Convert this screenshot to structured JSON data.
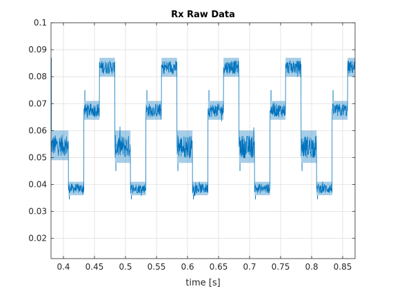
{
  "chart_data": {
    "type": "line",
    "title": "Rx Raw Data",
    "xlabel": "time [s]",
    "ylabel": "",
    "xlim": [
      0.38,
      0.87
    ],
    "ylim": [
      0.0125,
      0.1
    ],
    "xticks": [
      0.4,
      0.45,
      0.5,
      0.55,
      0.6,
      0.65,
      0.7,
      0.75,
      0.8,
      0.85
    ],
    "xtick_labels": [
      "0.4",
      "0.45",
      "0.5",
      "0.55",
      "0.6",
      "0.65",
      "0.7",
      "0.75",
      "0.8",
      "0.85"
    ],
    "yticks": [
      0.02,
      0.03,
      0.04,
      0.05,
      0.06,
      0.07,
      0.08,
      0.09,
      0.1
    ],
    "ytick_labels": [
      "0.02",
      "0.03",
      "0.04",
      "0.05",
      "0.06",
      "0.07",
      "0.08",
      "0.09",
      "0.1"
    ],
    "grid": true,
    "legend": "none",
    "series": [
      {
        "color": "#0072BD",
        "period": 0.1,
        "segments": [
          {
            "x_start": 0.38,
            "x_end": 0.408,
            "low": 0.049,
            "high": 0.06
          },
          {
            "x_start": 0.408,
            "x_end": 0.433,
            "low": 0.036,
            "high": 0.041
          },
          {
            "x_start": 0.433,
            "x_end": 0.458,
            "low": 0.064,
            "high": 0.071
          },
          {
            "x_start": 0.458,
            "x_end": 0.483,
            "low": 0.08,
            "high": 0.087
          },
          {
            "x_start": 0.483,
            "x_end": 0.508,
            "low": 0.048,
            "high": 0.06
          },
          {
            "x_start": 0.508,
            "x_end": 0.533,
            "low": 0.036,
            "high": 0.041
          },
          {
            "x_start": 0.533,
            "x_end": 0.558,
            "low": 0.064,
            "high": 0.071
          },
          {
            "x_start": 0.558,
            "x_end": 0.583,
            "low": 0.08,
            "high": 0.087
          },
          {
            "x_start": 0.583,
            "x_end": 0.608,
            "low": 0.048,
            "high": 0.06
          },
          {
            "x_start": 0.608,
            "x_end": 0.633,
            "low": 0.036,
            "high": 0.041
          },
          {
            "x_start": 0.633,
            "x_end": 0.658,
            "low": 0.064,
            "high": 0.071
          },
          {
            "x_start": 0.658,
            "x_end": 0.683,
            "low": 0.08,
            "high": 0.087
          },
          {
            "x_start": 0.683,
            "x_end": 0.708,
            "low": 0.048,
            "high": 0.06
          },
          {
            "x_start": 0.708,
            "x_end": 0.733,
            "low": 0.036,
            "high": 0.041
          },
          {
            "x_start": 0.733,
            "x_end": 0.758,
            "low": 0.064,
            "high": 0.071
          },
          {
            "x_start": 0.758,
            "x_end": 0.783,
            "low": 0.08,
            "high": 0.087
          },
          {
            "x_start": 0.783,
            "x_end": 0.808,
            "low": 0.048,
            "high": 0.06
          },
          {
            "x_start": 0.808,
            "x_end": 0.833,
            "low": 0.036,
            "high": 0.041
          },
          {
            "x_start": 0.833,
            "x_end": 0.858,
            "low": 0.064,
            "high": 0.071
          },
          {
            "x_start": 0.858,
            "x_end": 0.87,
            "low": 0.08,
            "high": 0.087
          }
        ],
        "spikes": [
          {
            "x": 0.3805,
            "y": 0.087
          },
          {
            "x": 0.4095,
            "y": 0.0345
          },
          {
            "x": 0.4345,
            "y": 0.075
          },
          {
            "x": 0.4845,
            "y": 0.045
          },
          {
            "x": 0.5095,
            "y": 0.0345
          },
          {
            "x": 0.5345,
            "y": 0.075
          },
          {
            "x": 0.5845,
            "y": 0.045
          },
          {
            "x": 0.6095,
            "y": 0.0345
          },
          {
            "x": 0.6345,
            "y": 0.075
          },
          {
            "x": 0.6845,
            "y": 0.045
          },
          {
            "x": 0.7095,
            "y": 0.0345
          },
          {
            "x": 0.7345,
            "y": 0.075
          },
          {
            "x": 0.7845,
            "y": 0.045
          },
          {
            "x": 0.8095,
            "y": 0.0345
          },
          {
            "x": 0.8345,
            "y": 0.075
          }
        ]
      }
    ]
  }
}
